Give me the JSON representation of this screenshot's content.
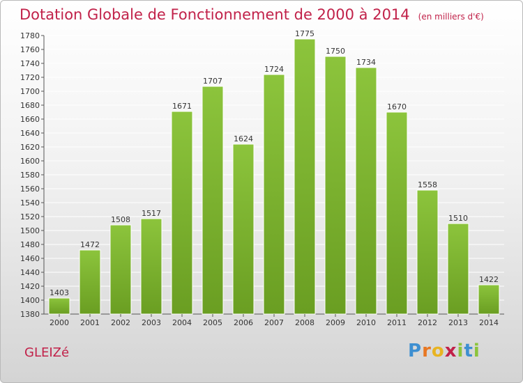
{
  "chart_data": {
    "type": "bar",
    "title": "Dotation Globale de Fonctionnement de 2000 à 2014",
    "subtitle": "(en milliers d'€)",
    "categories": [
      "2000",
      "2001",
      "2002",
      "2003",
      "2004",
      "2005",
      "2006",
      "2007",
      "2008",
      "2009",
      "2010",
      "2011",
      "2012",
      "2013",
      "2014"
    ],
    "values": [
      1403,
      1472,
      1508,
      1517,
      1671,
      1707,
      1624,
      1724,
      1775,
      1750,
      1734,
      1670,
      1558,
      1510,
      1422
    ],
    "ylim": [
      1380,
      1780
    ],
    "yticks": [
      1380,
      1400,
      1420,
      1440,
      1460,
      1480,
      1500,
      1520,
      1540,
      1560,
      1580,
      1600,
      1620,
      1640,
      1660,
      1680,
      1700,
      1720,
      1740,
      1760,
      1780
    ],
    "grid": true,
    "bar_color": "#8cc43c",
    "bar_color_dark": "#6a9e22"
  },
  "footer": {
    "town": "GLEIZé",
    "logo": [
      "P",
      "r",
      "o",
      "x",
      "i",
      "t",
      "i"
    ],
    "logo_colors": [
      "#3d8fd1",
      "#e87722",
      "#e8b422",
      "#c12149",
      "#8cc43c",
      "#3d8fd1",
      "#8cc43c"
    ]
  },
  "colors": {
    "title": "#c12149",
    "axis": "#333333",
    "grid": "#ffffff"
  }
}
